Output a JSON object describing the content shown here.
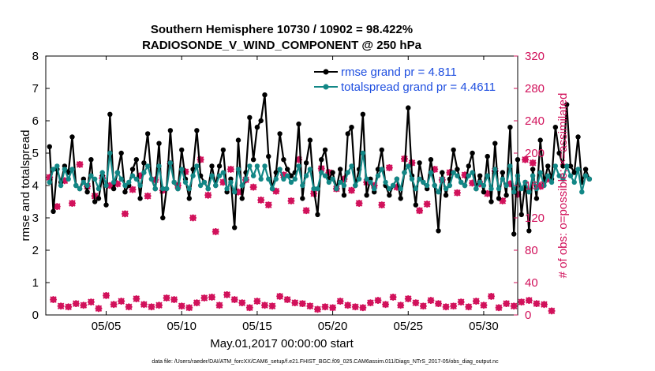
{
  "chart_data": {
    "type": "line",
    "title": "Southern Hemisphere 10730 / 10902 = 98.422%",
    "subtitle": "RADIOSONDE_V_WIND_COMPONENT @ 250 hPa",
    "xlabel": "May.01,2017 00:00:00 start",
    "ylabel": "rmse and totalspread",
    "ylabel_right": "# of obs: o=possible; ×=assimilated",
    "footnote": "data file: /Users/raeder/DAI/ATM_forcXX/CAM6_setup/f.e21.FHIST_BGC.f09_025.CAM6assim.011/Diags_NTrS_2017-05/obs_diag_output.nc",
    "x_range": [
      1.0,
      32.25
    ],
    "ylim": [
      0,
      8
    ],
    "ylim_right": [
      0,
      320
    ],
    "x_ticks": [
      5,
      10,
      15,
      20,
      25,
      30
    ],
    "x_tick_labels": [
      "05/05",
      "05/10",
      "05/15",
      "05/20",
      "05/25",
      "05/30"
    ],
    "y_ticks": [
      0,
      1,
      2,
      3,
      4,
      5,
      6,
      7,
      8
    ],
    "y_ticks_right": [
      0,
      40,
      80,
      120,
      160,
      200,
      240,
      280,
      320
    ],
    "x_step_days": 0.25,
    "x_start": 1.25,
    "legend": {
      "location": "top-right",
      "entries": [
        "rmse grand pr = 4.811",
        "totalspread grand pr = 4.4611"
      ]
    },
    "series": [
      {
        "name": "rmse grand pr = 4.811",
        "axis": "left",
        "color": "#000000",
        "values": [
          5.2,
          3.2,
          4.5,
          4.1,
          4.6,
          4.4,
          5.5,
          4.0,
          3.9,
          4.2,
          3.8,
          4.8,
          3.5,
          3.6,
          4.3,
          3.4,
          6.2,
          3.9,
          4.4,
          5.0,
          3.8,
          4.0,
          4.5,
          4.8,
          3.6,
          4.7,
          5.6,
          4.2,
          3.9,
          5.3,
          3.0,
          3.9,
          5.7,
          4.1,
          3.9,
          5.1,
          4.2,
          3.6,
          4.5,
          5.7,
          4.3,
          4.1,
          3.9,
          4.6,
          4.0,
          4.6,
          5.1,
          3.8,
          4.2,
          2.7,
          5.4,
          3.6,
          4.4,
          6.1,
          4.8,
          5.8,
          6.0,
          6.8,
          4.9,
          3.9,
          4.4,
          5.6,
          4.8,
          4.5,
          4.3,
          4.4,
          5.9,
          3.6,
          4.7,
          5.4,
          3.9,
          3.1,
          4.8,
          5.1,
          4.2,
          4.4,
          3.9,
          4.5,
          3.7,
          5.6,
          5.8,
          4.0,
          4.5,
          6.2,
          3.7,
          4.2,
          3.8,
          4.5,
          5.1,
          4.0,
          3.7,
          4.0,
          4.2,
          3.6,
          4.4,
          6.4,
          4.3,
          3.4,
          4.7,
          4.1,
          3.9,
          4.8,
          4.0,
          2.6,
          4.4,
          3.7,
          4.2,
          5.1,
          4.5,
          4.1,
          4.0,
          4.6,
          5.0,
          3.9,
          4.3,
          3.8,
          4.9,
          3.5,
          5.3,
          3.6,
          4.4,
          3.7,
          5.8,
          2.5,
          4.8,
          3.1,
          4.1,
          2.6,
          4.5,
          3.6,
          5.4,
          4.1,
          4.6,
          4.2,
          5.8,
          5.0,
          4.6,
          6.5,
          4.6,
          4.4,
          5.5,
          4.1,
          4.5,
          4.2
        ]
      },
      {
        "name": "totalspread grand pr = 4.4611",
        "axis": "left",
        "color": "#128786",
        "values": [
          4.1,
          4.5,
          4.6,
          4.0,
          4.5,
          4.2,
          4.5,
          4.0,
          3.9,
          4.1,
          4.0,
          4.3,
          4.2,
          3.9,
          4.4,
          4.0,
          5.0,
          4.1,
          4.4,
          4.2,
          4.0,
          4.1,
          4.3,
          4.2,
          4.0,
          4.4,
          4.6,
          4.2,
          3.9,
          4.6,
          3.9,
          3.9,
          4.7,
          4.1,
          3.9,
          4.5,
          4.1,
          3.9,
          4.3,
          4.6,
          4.0,
          4.1,
          3.9,
          4.3,
          4.0,
          4.3,
          4.4,
          3.9,
          4.1,
          3.8,
          4.5,
          4.0,
          4.2,
          4.6,
          4.3,
          4.6,
          4.2,
          4.6,
          4.2,
          3.9,
          4.2,
          4.5,
          4.2,
          4.3,
          4.1,
          4.2,
          4.6,
          4.0,
          4.3,
          4.5,
          3.9,
          3.9,
          4.4,
          4.3,
          4.1,
          4.2,
          3.9,
          4.1,
          4.0,
          4.4,
          4.6,
          4.0,
          4.2,
          5.0,
          4.2,
          4.1,
          3.9,
          4.3,
          4.5,
          4.1,
          3.9,
          4.0,
          4.2,
          3.9,
          4.4,
          4.6,
          4.2,
          3.9,
          4.2,
          4.1,
          4.0,
          4.4,
          4.0,
          3.8,
          4.2,
          3.9,
          4.0,
          4.4,
          4.3,
          4.1,
          4.0,
          4.3,
          4.4,
          3.9,
          4.1,
          4.0,
          4.3,
          3.9,
          4.5,
          3.9,
          4.2,
          4.0,
          4.6,
          3.8,
          4.3,
          3.9,
          4.1,
          3.8,
          4.3,
          3.9,
          4.4,
          4.0,
          4.3,
          4.1,
          4.6,
          4.3,
          4.2,
          4.6,
          4.3,
          4.1,
          4.5,
          3.8,
          4.3,
          4.2
        ]
      },
      {
        "name": "obs possible / assimilated",
        "axis": "right",
        "color": "#d1105a",
        "values": [
          170,
          19,
          134,
          11,
          166,
          10,
          138,
          14,
          186,
          12,
          159,
          16,
          147,
          8,
          169,
          24,
          160,
          13,
          162,
          17,
          125,
          10,
          155,
          20,
          172,
          13,
          147,
          10,
          167,
          12,
          154,
          21,
          187,
          19,
          160,
          11,
          177,
          9,
          120,
          15,
          192,
          21,
          148,
          22,
          103,
          12,
          164,
          25,
          180,
          19,
          152,
          15,
          167,
          9,
          158,
          17,
          142,
          12,
          136,
          11,
          153,
          23,
          173,
          19,
          141,
          15,
          192,
          14,
          129,
          11,
          150,
          7,
          181,
          10,
          176,
          9,
          156,
          17,
          168,
          12,
          154,
          10,
          138,
          9,
          164,
          15,
          160,
          18,
          136,
          13,
          182,
          22,
          158,
          12,
          193,
          20,
          188,
          15,
          129,
          11,
          137,
          18,
          180,
          14,
          167,
          10,
          176,
          11,
          151,
          16,
          173,
          10,
          163,
          17,
          162,
          12,
          150,
          23,
          178,
          9,
          141,
          14,
          162,
          11,
          149,
          16,
          192,
          18,
          188,
          14,
          159,
          13,
          168,
          5
        ]
      }
    ]
  }
}
